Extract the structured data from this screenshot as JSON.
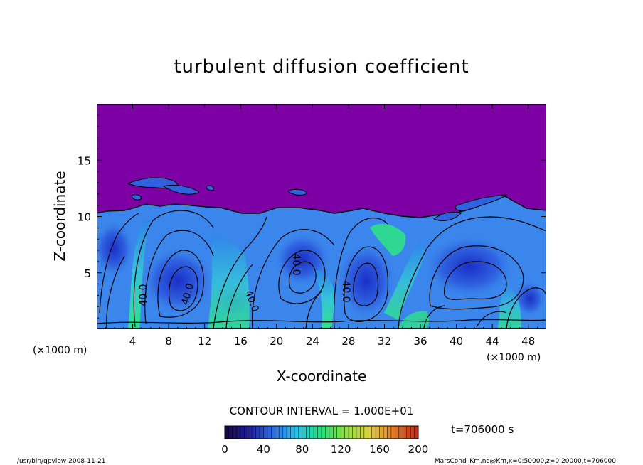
{
  "chart_data": {
    "type": "heatmap",
    "title": "turbulent diffusion coefficient",
    "xlabel": "X-coordinate",
    "ylabel": "Z-coordinate",
    "x_unit": "(×1000 m)",
    "y_unit": "(×1000 m)",
    "xlim": [
      0,
      50
    ],
    "ylim": [
      0,
      20
    ],
    "x_ticks": [
      4,
      8,
      12,
      16,
      20,
      24,
      28,
      32,
      36,
      40,
      44,
      48
    ],
    "y_ticks": [
      5,
      10,
      15
    ],
    "contour_interval_text": "CONTOUR INTERVAL = 1.000E+01",
    "contour_labels": [
      "40.0",
      "40.0",
      "40.0",
      "40.0",
      "40.0"
    ],
    "time_text": "t=706000 s",
    "colorbar": {
      "min": 0,
      "max": 200,
      "ticks": [
        0,
        40,
        80,
        120,
        160,
        200
      ],
      "colors": [
        "#160840",
        "#2020a0",
        "#2e6ee8",
        "#27c4e8",
        "#22e07a",
        "#8ee040",
        "#e0d040",
        "#e07a2a",
        "#c02a18"
      ]
    },
    "background_color": "#7d00a5",
    "boundary_layer_top_km": 10.5,
    "footer_left": "/usr/bin/gpview   2008-11-21",
    "footer_right": "MarsCond_Km.nc@Km,x=0:50000,z=0:20000,t=706000",
    "grid": false
  }
}
